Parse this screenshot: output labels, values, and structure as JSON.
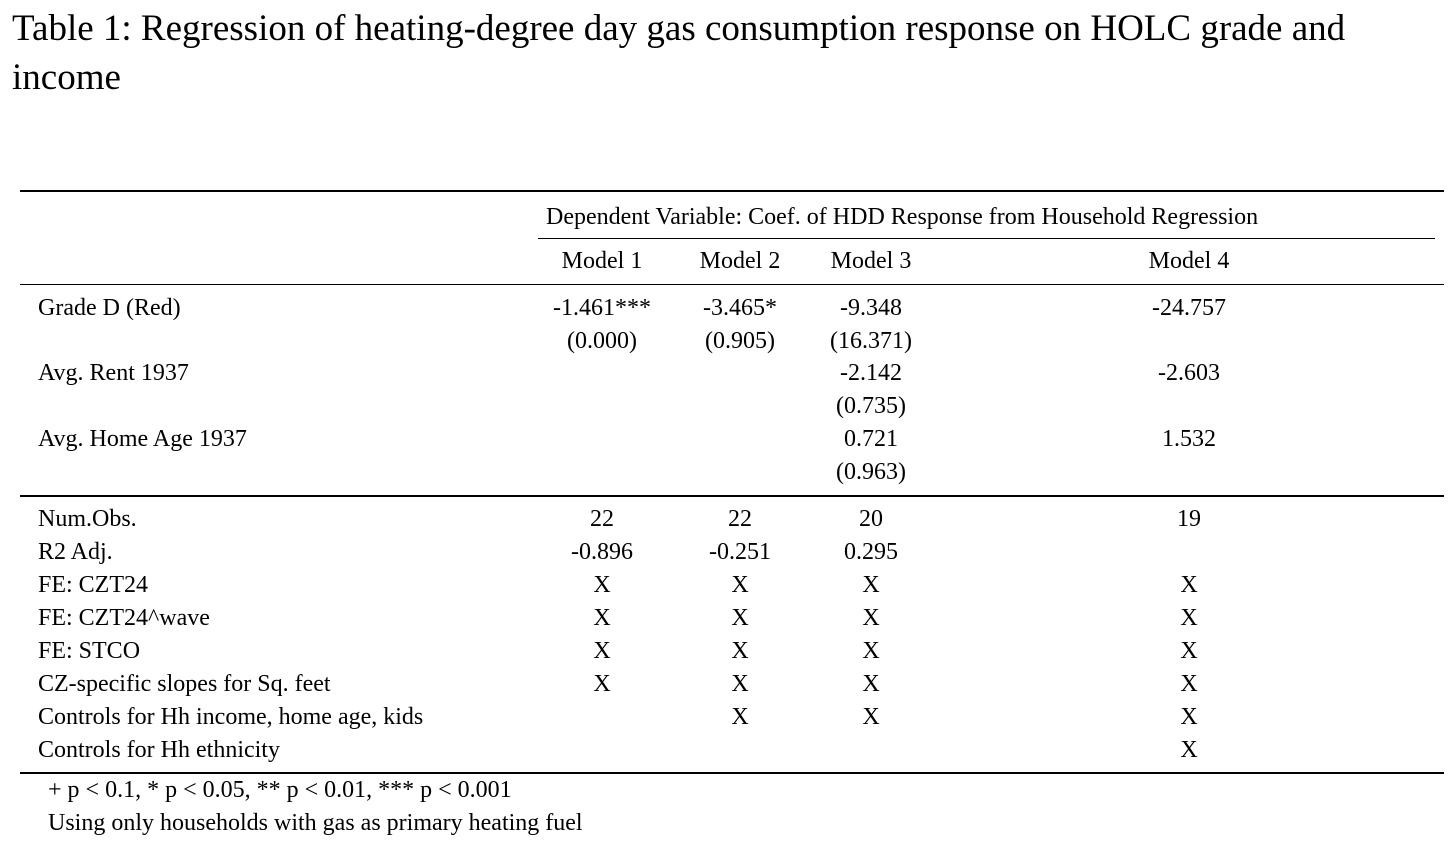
{
  "caption": "Table 1: Regression of heating-degree day gas consumption response on HOLC grade and income",
  "table": {
    "dep_var_header": "Dependent Variable: Coef. of HDD Response from Household Regression",
    "models": [
      "Model 1",
      "Model 2",
      "Model 3",
      "Model 4"
    ],
    "coef_rows": [
      {
        "label": "Grade D (Red)",
        "est": [
          "-1.461***",
          "-3.465*",
          "-9.348",
          "-24.757"
        ],
        "se": [
          "(0.000)",
          "(0.905)",
          "(16.371)",
          ""
        ]
      },
      {
        "label": "Avg. Rent 1937",
        "est": [
          "",
          "",
          "-2.142",
          "-2.603"
        ],
        "se": [
          "",
          "",
          "(0.735)",
          ""
        ]
      },
      {
        "label": "Avg. Home Age 1937",
        "est": [
          "",
          "",
          "0.721",
          "1.532"
        ],
        "se": [
          "",
          "",
          "(0.963)",
          ""
        ]
      }
    ],
    "stat_rows": [
      {
        "label": "Num.Obs.",
        "vals": [
          "22",
          "22",
          "20",
          "19"
        ]
      },
      {
        "label": "R2 Adj.",
        "vals": [
          "-0.896",
          "-0.251",
          "0.295",
          ""
        ]
      },
      {
        "label": "FE: CZT24",
        "vals": [
          "X",
          "X",
          "X",
          "X"
        ]
      },
      {
        "label": "FE: CZT24^wave",
        "vals": [
          "X",
          "X",
          "X",
          "X"
        ]
      },
      {
        "label": "FE: STCO",
        "vals": [
          "X",
          "X",
          "X",
          "X"
        ]
      },
      {
        "label": "CZ-specific slopes for Sq. feet",
        "vals": [
          "X",
          "X",
          "X",
          "X"
        ]
      },
      {
        "label": "Controls for Hh income, home age, kids",
        "vals": [
          "",
          "X",
          "X",
          "X"
        ]
      },
      {
        "label": "Controls for Hh ethnicity",
        "vals": [
          "",
          "",
          "",
          "X"
        ]
      }
    ]
  },
  "notes": [
    "+ p < 0.1, * p < 0.05, ** p < 0.01, *** p < 0.001",
    "Using only households with gas as primary heating fuel"
  ]
}
